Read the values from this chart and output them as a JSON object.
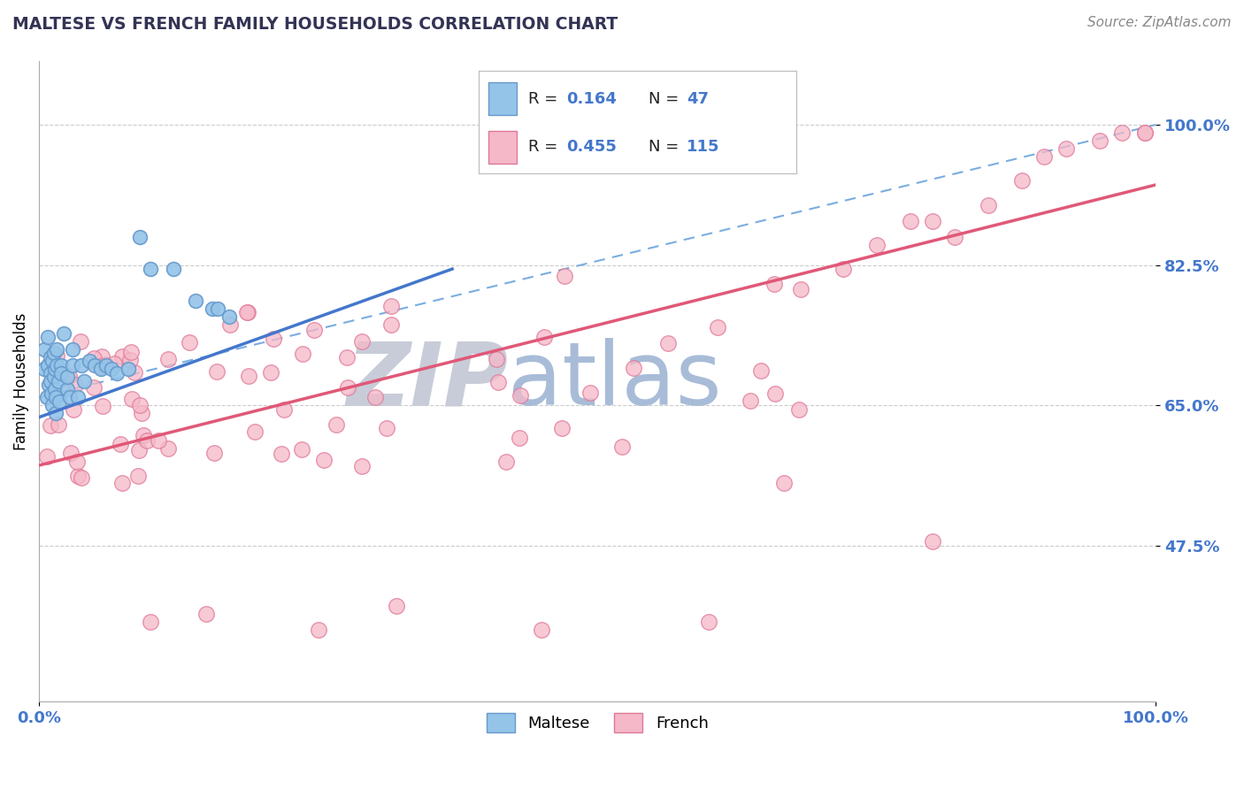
{
  "title": "MALTESE VS FRENCH FAMILY HOUSEHOLDS CORRELATION CHART",
  "source": "Source: ZipAtlas.com",
  "ylabel": "Family Households",
  "xlim": [
    0.0,
    1.0
  ],
  "ylim": [
    0.28,
    1.08
  ],
  "ytick_vals": [
    0.475,
    0.65,
    0.825,
    1.0
  ],
  "ytick_labels": [
    "47.5%",
    "65.0%",
    "82.5%",
    "100.0%"
  ],
  "xtick_vals": [
    0.0,
    1.0
  ],
  "xtick_labels": [
    "0.0%",
    "100.0%"
  ],
  "maltese_color": "#94c4e8",
  "maltese_edge": "#6699cc",
  "french_color": "#f5b8c8",
  "french_edge": "#e07898",
  "maltese_R": 0.164,
  "maltese_N": 47,
  "french_R": 0.455,
  "french_N": 115,
  "reg_maltese_color": "#4477cc",
  "reg_french_color": "#e05878",
  "reg_dashed_color": "#7aade0",
  "watermark_zip_color": "#c8ccd8",
  "watermark_atlas_color": "#a8bcd8",
  "axis_color": "#4477cc",
  "grid_color": "#cccccc",
  "title_color": "#333355"
}
